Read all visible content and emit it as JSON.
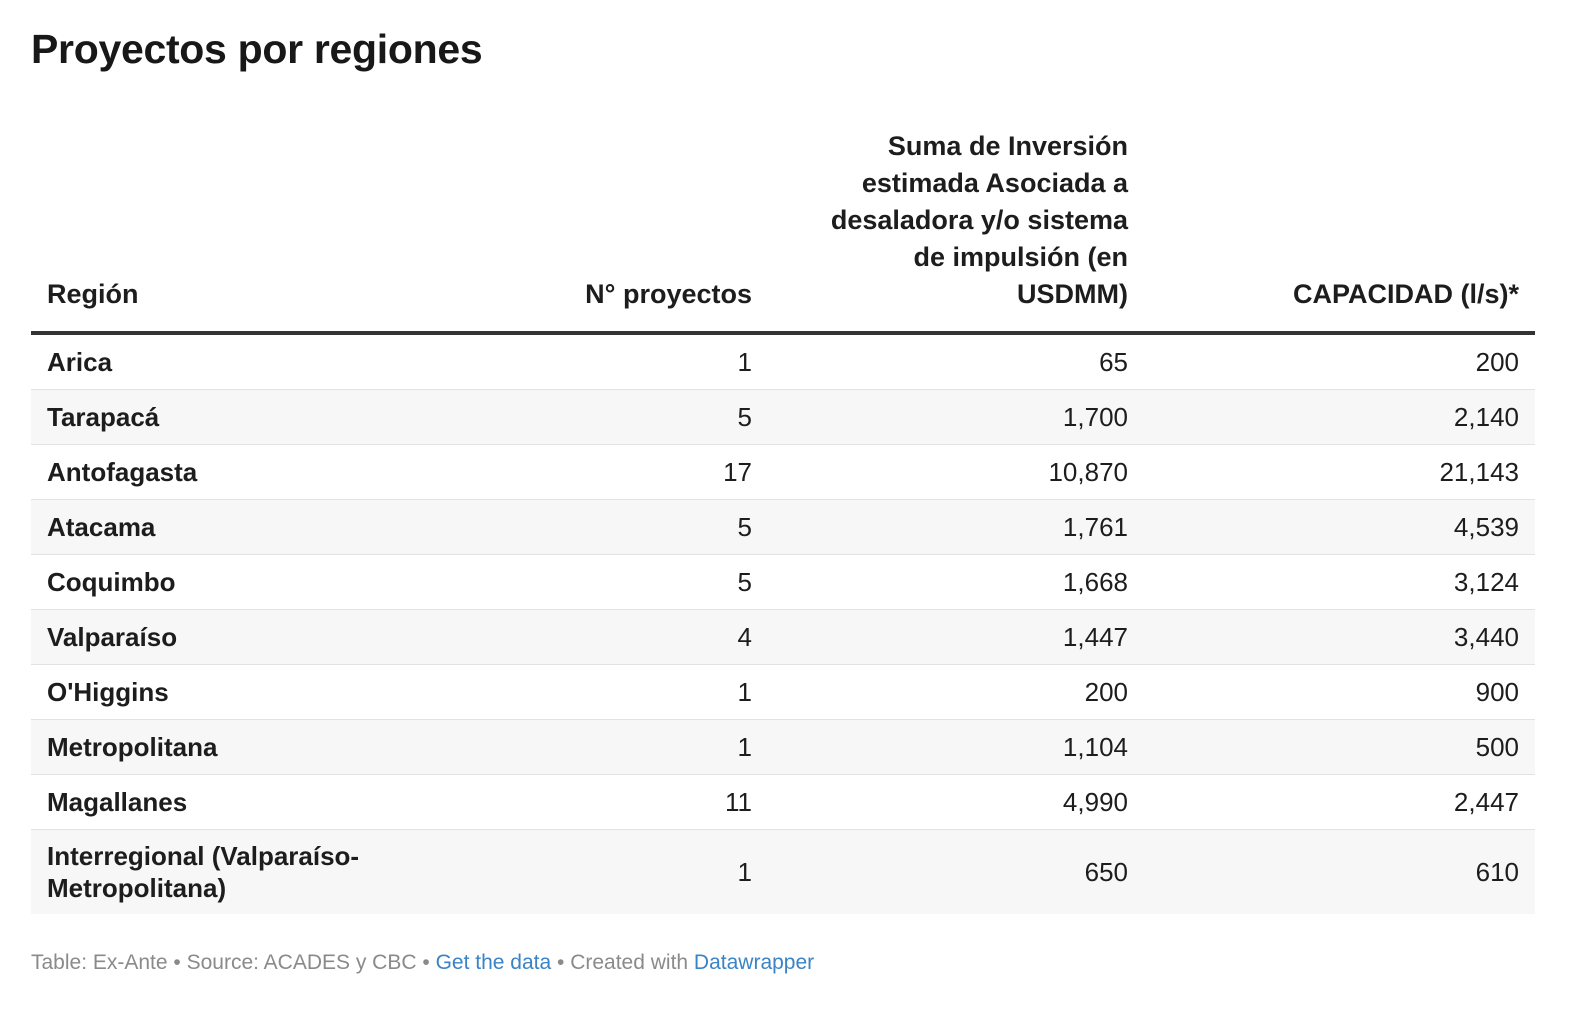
{
  "title": "Proyectos por regiones",
  "headers": [
    "Región",
    "N° proyectos",
    "Suma de Inversión estimada Asociada a desaladora y/o sistema de impulsión (en USDMM)",
    "CAPACIDAD (l/s)*"
  ],
  "rows": [
    [
      "Arica",
      "1",
      "65",
      "200"
    ],
    [
      "Tarapacá",
      "5",
      "1,700",
      "2,140"
    ],
    [
      "Antofagasta",
      "17",
      "10,870",
      "21,143"
    ],
    [
      "Atacama",
      "5",
      "1,761",
      "4,539"
    ],
    [
      "Coquimbo",
      "5",
      "1,668",
      "3,124"
    ],
    [
      "Valparaíso",
      "4",
      "1,447",
      "3,440"
    ],
    [
      "O'Higgins",
      "1",
      "200",
      "900"
    ],
    [
      "Metropolitana",
      "1",
      "1,104",
      "500"
    ],
    [
      "Magallanes",
      "11",
      "4,990",
      "2,447"
    ],
    [
      "Interregional (Valparaíso-Metropolitana)",
      "1",
      "650",
      "610"
    ]
  ],
  "footer": {
    "table": "Table: Ex-Ante",
    "sep": " • ",
    "source": "Source: ACADES y CBC",
    "get_data": "Get the data",
    "created": "Created with",
    "datawrapper": "Datawrapper"
  }
}
